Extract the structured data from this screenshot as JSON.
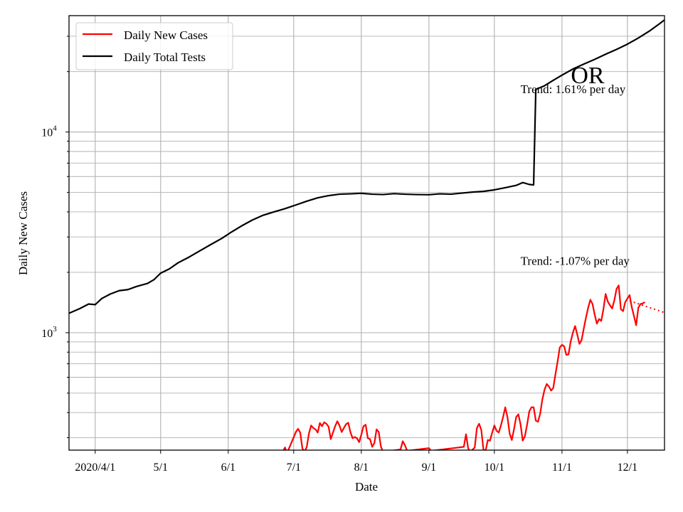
{
  "chart_data": {
    "type": "line",
    "state_label": "OR",
    "xlabel": "Date",
    "ylabel": "Daily New Cases",
    "yscale": "log",
    "ylim": [
      260,
      38000
    ],
    "xlim": [
      "2020-03-20",
      "2020-12-18"
    ],
    "grid": true,
    "legend_position": "top-left",
    "x_ticks": [
      {
        "date": "2020-04-01",
        "label": "2020/4/1"
      },
      {
        "date": "2020-05-01",
        "label": "5/1"
      },
      {
        "date": "2020-06-01",
        "label": "6/1"
      },
      {
        "date": "2020-07-01",
        "label": "7/1"
      },
      {
        "date": "2020-08-01",
        "label": "8/1"
      },
      {
        "date": "2020-09-01",
        "label": "9/1"
      },
      {
        "date": "2020-10-01",
        "label": "10/1"
      },
      {
        "date": "2020-11-01",
        "label": "11/1"
      },
      {
        "date": "2020-12-01",
        "label": "12/1"
      }
    ],
    "y_major_ticks": [
      {
        "value": 1000,
        "base": "10",
        "exp": "3"
      },
      {
        "value": 10000,
        "base": "10",
        "exp": "4"
      }
    ],
    "annotations": [
      {
        "text": "Trend: 1.61% per day",
        "date": "2020-10-13",
        "value": 15600
      },
      {
        "text": "Trend: -1.07% per day",
        "date": "2020-10-13",
        "value": 2180
      }
    ],
    "series": [
      {
        "name": "Daily Total Tests",
        "color": "#000000",
        "points": [
          [
            "2020-03-20",
            1250
          ],
          [
            "2020-03-25",
            1320
          ],
          [
            "2020-03-29",
            1390
          ],
          [
            "2020-04-01",
            1380
          ],
          [
            "2020-04-04",
            1480
          ],
          [
            "2020-04-08",
            1560
          ],
          [
            "2020-04-12",
            1620
          ],
          [
            "2020-04-16",
            1640
          ],
          [
            "2020-04-20",
            1700
          ],
          [
            "2020-04-25",
            1760
          ],
          [
            "2020-04-28",
            1840
          ],
          [
            "2020-05-01",
            1980
          ],
          [
            "2020-05-05",
            2080
          ],
          [
            "2020-05-09",
            2230
          ],
          [
            "2020-05-14",
            2380
          ],
          [
            "2020-05-19",
            2560
          ],
          [
            "2020-05-24",
            2750
          ],
          [
            "2020-05-29",
            2950
          ],
          [
            "2020-06-02",
            3150
          ],
          [
            "2020-06-07",
            3400
          ],
          [
            "2020-06-12",
            3640
          ],
          [
            "2020-06-17",
            3850
          ],
          [
            "2020-06-22",
            4000
          ],
          [
            "2020-06-27",
            4150
          ],
          [
            "2020-07-02",
            4330
          ],
          [
            "2020-07-07",
            4520
          ],
          [
            "2020-07-12",
            4700
          ],
          [
            "2020-07-17",
            4820
          ],
          [
            "2020-07-22",
            4900
          ],
          [
            "2020-07-27",
            4920
          ],
          [
            "2020-08-01",
            4950
          ],
          [
            "2020-08-06",
            4900
          ],
          [
            "2020-08-11",
            4880
          ],
          [
            "2020-08-16",
            4930
          ],
          [
            "2020-08-21",
            4900
          ],
          [
            "2020-08-26",
            4880
          ],
          [
            "2020-09-01",
            4870
          ],
          [
            "2020-09-06",
            4920
          ],
          [
            "2020-09-11",
            4900
          ],
          [
            "2020-09-16",
            4960
          ],
          [
            "2020-09-21",
            5020
          ],
          [
            "2020-09-26",
            5060
          ],
          [
            "2020-10-01",
            5150
          ],
          [
            "2020-10-06",
            5280
          ],
          [
            "2020-10-11",
            5420
          ],
          [
            "2020-10-14",
            5600
          ],
          [
            "2020-10-17",
            5480
          ],
          [
            "2020-10-19",
            5450
          ],
          [
            "2020-10-20",
            16300
          ],
          [
            "2020-10-24",
            17000
          ],
          [
            "2020-10-28",
            18100
          ],
          [
            "2020-11-01",
            19200
          ],
          [
            "2020-11-06",
            20600
          ],
          [
            "2020-11-11",
            21800
          ],
          [
            "2020-11-16",
            23000
          ],
          [
            "2020-11-21",
            24400
          ],
          [
            "2020-11-26",
            25800
          ],
          [
            "2020-12-01",
            27400
          ],
          [
            "2020-12-06",
            29400
          ],
          [
            "2020-12-11",
            31800
          ],
          [
            "2020-12-16",
            34800
          ],
          [
            "2020-12-18",
            36200
          ]
        ]
      },
      {
        "name": "Daily New Cases",
        "color": "#ff0000",
        "points": [
          [
            "2020-06-26",
            255
          ],
          [
            "2020-06-27",
            268
          ],
          [
            "2020-06-28",
            252
          ],
          [
            "2020-07-02",
            320
          ],
          [
            "2020-07-03",
            332
          ],
          [
            "2020-07-04",
            318
          ],
          [
            "2020-07-05",
            265
          ],
          [
            "2020-07-06",
            255
          ],
          [
            "2020-07-07",
            270
          ],
          [
            "2020-07-08",
            315
          ],
          [
            "2020-07-09",
            345
          ],
          [
            "2020-07-10",
            335
          ],
          [
            "2020-07-11",
            330
          ],
          [
            "2020-07-12",
            318
          ],
          [
            "2020-07-13",
            355
          ],
          [
            "2020-07-14",
            342
          ],
          [
            "2020-07-15",
            358
          ],
          [
            "2020-07-16",
            352
          ],
          [
            "2020-07-17",
            340
          ],
          [
            "2020-07-18",
            295
          ],
          [
            "2020-07-19",
            318
          ],
          [
            "2020-07-20",
            342
          ],
          [
            "2020-07-21",
            362
          ],
          [
            "2020-07-22",
            345
          ],
          [
            "2020-07-23",
            320
          ],
          [
            "2020-07-24",
            335
          ],
          [
            "2020-07-25",
            350
          ],
          [
            "2020-07-26",
            356
          ],
          [
            "2020-07-27",
            320
          ],
          [
            "2020-07-28",
            298
          ],
          [
            "2020-07-29",
            302
          ],
          [
            "2020-07-30",
            298
          ],
          [
            "2020-07-31",
            285
          ],
          [
            "2020-08-01",
            310
          ],
          [
            "2020-08-02",
            342
          ],
          [
            "2020-08-03",
            348
          ],
          [
            "2020-08-04",
            298
          ],
          [
            "2020-08-05",
            295
          ],
          [
            "2020-08-06",
            270
          ],
          [
            "2020-08-07",
            282
          ],
          [
            "2020-08-08",
            330
          ],
          [
            "2020-08-09",
            320
          ],
          [
            "2020-08-10",
            270
          ],
          [
            "2020-08-11",
            255
          ],
          [
            "2020-08-19",
            262
          ],
          [
            "2020-08-20",
            288
          ],
          [
            "2020-08-21",
            275
          ],
          [
            "2020-08-22",
            258
          ],
          [
            "2020-09-01",
            266
          ],
          [
            "2020-09-02",
            258
          ],
          [
            "2020-09-17",
            270
          ],
          [
            "2020-09-18",
            312
          ],
          [
            "2020-09-19",
            265
          ],
          [
            "2020-09-20",
            255
          ],
          [
            "2020-09-22",
            268
          ],
          [
            "2020-09-23",
            335
          ],
          [
            "2020-09-24",
            352
          ],
          [
            "2020-09-25",
            328
          ],
          [
            "2020-09-26",
            262
          ],
          [
            "2020-09-27",
            258
          ],
          [
            "2020-09-28",
            292
          ],
          [
            "2020-09-29",
            290
          ],
          [
            "2020-09-30",
            318
          ],
          [
            "2020-10-01",
            345
          ],
          [
            "2020-10-02",
            325
          ],
          [
            "2020-10-03",
            318
          ],
          [
            "2020-10-04",
            345
          ],
          [
            "2020-10-05",
            380
          ],
          [
            "2020-10-06",
            425
          ],
          [
            "2020-10-07",
            380
          ],
          [
            "2020-10-08",
            315
          ],
          [
            "2020-10-09",
            292
          ],
          [
            "2020-10-10",
            330
          ],
          [
            "2020-10-11",
            380
          ],
          [
            "2020-10-12",
            392
          ],
          [
            "2020-10-13",
            350
          ],
          [
            "2020-10-14",
            290
          ],
          [
            "2020-10-15",
            305
          ],
          [
            "2020-10-16",
            348
          ],
          [
            "2020-10-17",
            405
          ],
          [
            "2020-10-18",
            425
          ],
          [
            "2020-10-19",
            425
          ],
          [
            "2020-10-20",
            365
          ],
          [
            "2020-10-21",
            360
          ],
          [
            "2020-10-22",
            395
          ],
          [
            "2020-10-23",
            465
          ],
          [
            "2020-10-24",
            520
          ],
          [
            "2020-10-25",
            555
          ],
          [
            "2020-10-26",
            540
          ],
          [
            "2020-10-27",
            515
          ],
          [
            "2020-10-28",
            530
          ],
          [
            "2020-10-29",
            620
          ],
          [
            "2020-10-30",
            720
          ],
          [
            "2020-10-31",
            845
          ],
          [
            "2020-11-01",
            870
          ],
          [
            "2020-11-02",
            855
          ],
          [
            "2020-11-03",
            775
          ],
          [
            "2020-11-04",
            780
          ],
          [
            "2020-11-05",
            905
          ],
          [
            "2020-11-06",
            1000
          ],
          [
            "2020-11-07",
            1080
          ],
          [
            "2020-11-08",
            980
          ],
          [
            "2020-11-09",
            880
          ],
          [
            "2020-11-10",
            920
          ],
          [
            "2020-11-11",
            1050
          ],
          [
            "2020-11-12",
            1190
          ],
          [
            "2020-11-13",
            1330
          ],
          [
            "2020-11-14",
            1460
          ],
          [
            "2020-11-15",
            1390
          ],
          [
            "2020-11-16",
            1230
          ],
          [
            "2020-11-17",
            1110
          ],
          [
            "2020-11-18",
            1170
          ],
          [
            "2020-11-19",
            1145
          ],
          [
            "2020-11-20",
            1310
          ],
          [
            "2020-11-21",
            1560
          ],
          [
            "2020-11-22",
            1430
          ],
          [
            "2020-11-23",
            1370
          ],
          [
            "2020-11-24",
            1320
          ],
          [
            "2020-11-25",
            1450
          ],
          [
            "2020-11-26",
            1650
          ],
          [
            "2020-11-27",
            1720
          ],
          [
            "2020-11-28",
            1310
          ],
          [
            "2020-11-29",
            1280
          ],
          [
            "2020-11-30",
            1420
          ],
          [
            "2020-12-01",
            1480
          ],
          [
            "2020-12-02",
            1540
          ],
          [
            "2020-12-03",
            1340
          ],
          [
            "2020-12-04",
            1210
          ],
          [
            "2020-12-05",
            1090
          ],
          [
            "2020-12-06",
            1330
          ],
          [
            "2020-12-07",
            1390
          ],
          [
            "2020-12-08",
            1400
          ],
          [
            "2020-12-09",
            1420
          ]
        ]
      }
    ],
    "trend_line": {
      "color": "#ff0000",
      "style": "dotted",
      "points": [
        [
          "2020-12-02",
          1440
        ],
        [
          "2020-12-18",
          1260
        ]
      ]
    }
  }
}
